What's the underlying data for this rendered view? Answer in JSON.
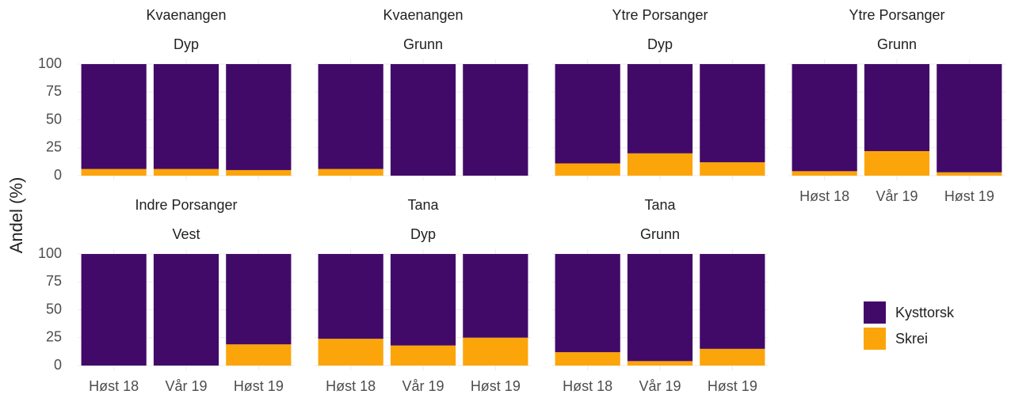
{
  "chart_data": {
    "type": "bar",
    "stacked": true,
    "ylabel": "Andel (%)",
    "categories": [
      "Høst 18",
      "Vår 19",
      "Høst 19"
    ],
    "series": [
      {
        "name": "Kysttorsk",
        "color": "#420a68"
      },
      {
        "name": "Skrei",
        "color": "#fca50a"
      }
    ],
    "ylim": [
      0,
      100
    ],
    "yticks": [
      0,
      25,
      50,
      75,
      100
    ],
    "grid": true,
    "facets": [
      {
        "strip": [
          "Kvaenangen",
          "Dyp"
        ],
        "values": [
          [
            94,
            94,
            95
          ],
          [
            6,
            6,
            5
          ]
        ]
      },
      {
        "strip": [
          "Kvaenangen",
          "Grunn"
        ],
        "values": [
          [
            94,
            100,
            100
          ],
          [
            6,
            0,
            0
          ]
        ]
      },
      {
        "strip": [
          "Ytre Porsanger",
          "Dyp"
        ],
        "values": [
          [
            89,
            80,
            88
          ],
          [
            11,
            20,
            12
          ]
        ]
      },
      {
        "strip": [
          "Ytre Porsanger",
          "Grunn"
        ],
        "values": [
          [
            96,
            78,
            97
          ],
          [
            4,
            22,
            3
          ]
        ]
      },
      {
        "strip": [
          "Indre Porsanger",
          "Vest"
        ],
        "values": [
          [
            100,
            100,
            81
          ],
          [
            0,
            0,
            19
          ]
        ]
      },
      {
        "strip": [
          "Tana",
          "Dyp"
        ],
        "values": [
          [
            76,
            82,
            75
          ],
          [
            24,
            18,
            25
          ]
        ]
      },
      {
        "strip": [
          "Tana",
          "Grunn"
        ],
        "values": [
          [
            88,
            96,
            85
          ],
          [
            12,
            4,
            15
          ]
        ]
      }
    ]
  }
}
